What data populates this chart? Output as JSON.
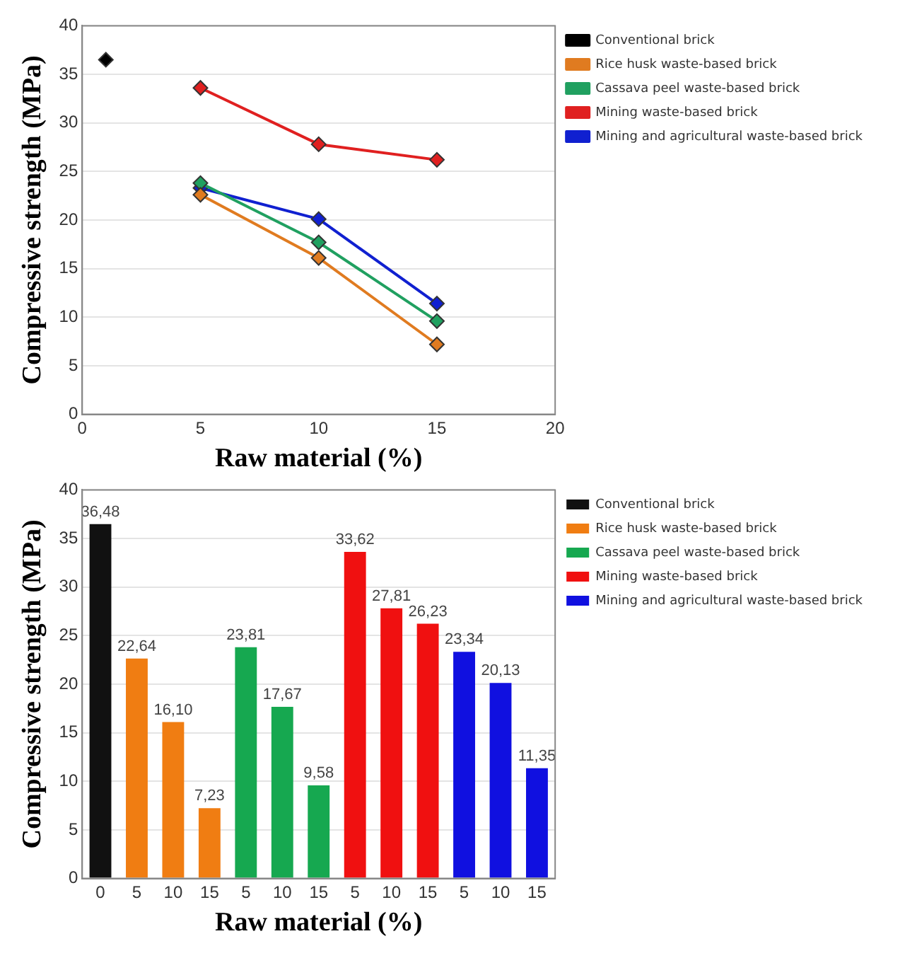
{
  "chart_data": [
    {
      "type": "line",
      "xlabel": "Raw material (%)",
      "ylabel": "Compressive strength (MPa)",
      "xlim": [
        0,
        20
      ],
      "xticks": [
        0,
        5,
        10,
        15,
        20
      ],
      "ylim": [
        0,
        40
      ],
      "yticks": [
        0,
        5,
        10,
        15,
        20,
        25,
        30,
        35,
        40
      ],
      "grid": "y",
      "legend": "top right",
      "marker": "diamond",
      "series": [
        {
          "name": "Conventional brick",
          "color": "#000000",
          "x": [
            1
          ],
          "values": [
            36.5
          ]
        },
        {
          "name": "Rice husk waste-based brick",
          "color": "#e07b20",
          "x": [
            5,
            10,
            15
          ],
          "values": [
            22.6,
            16.1,
            7.2
          ]
        },
        {
          "name": "Cassava peel waste-based brick",
          "color": "#20a060",
          "x": [
            5,
            10,
            15
          ],
          "values": [
            23.8,
            17.7,
            9.6
          ]
        },
        {
          "name": "Mining waste-based brick",
          "color": "#e02020",
          "x": [
            5,
            10,
            15
          ],
          "values": [
            33.6,
            27.8,
            26.2
          ]
        },
        {
          "name": "Mining and agricultural waste-based brick",
          "color": "#1020d0",
          "x": [
            5,
            10,
            15
          ],
          "values": [
            23.3,
            20.1,
            11.4
          ]
        }
      ]
    },
    {
      "type": "bar",
      "xlabel": "Raw material (%)",
      "ylabel": "Compressive strength (MPa)",
      "categories": [
        "0",
        "5",
        "10",
        "15",
        "5",
        "10",
        "15",
        "5",
        "10",
        "15",
        "5",
        "10",
        "15"
      ],
      "ylim": [
        0,
        40
      ],
      "yticks": [
        0,
        5,
        10,
        15,
        20,
        25,
        30,
        35,
        40
      ],
      "grid": "y",
      "legend": "top right",
      "series": [
        {
          "name": "Conventional brick",
          "color": "#111111",
          "values": [
            36.48,
            null,
            null,
            null,
            null,
            null,
            null,
            null,
            null,
            null,
            null,
            null,
            null
          ],
          "value_labels": [
            "36,48",
            null,
            null,
            null,
            null,
            null,
            null,
            null,
            null,
            null,
            null,
            null,
            null
          ]
        },
        {
          "name": "Rice husk waste-based brick",
          "color": "#f07d12",
          "values": [
            null,
            22.64,
            16.1,
            7.23,
            null,
            null,
            null,
            null,
            null,
            null,
            null,
            null,
            null
          ],
          "value_labels": [
            null,
            "22,64",
            "16,10",
            "7,23",
            null,
            null,
            null,
            null,
            null,
            null,
            null,
            null,
            null
          ]
        },
        {
          "name": "Cassava peel waste-based brick",
          "color": "#16a850",
          "values": [
            null,
            null,
            null,
            null,
            23.81,
            17.67,
            9.58,
            null,
            null,
            null,
            null,
            null,
            null
          ],
          "value_labels": [
            null,
            null,
            null,
            null,
            "23,81",
            "17,67",
            "9,58",
            null,
            null,
            null,
            null,
            null,
            null
          ]
        },
        {
          "name": "Mining waste-based brick",
          "color": "#f01010",
          "values": [
            null,
            null,
            null,
            null,
            null,
            null,
            null,
            33.62,
            27.81,
            26.23,
            null,
            null,
            null
          ],
          "value_labels": [
            null,
            null,
            null,
            null,
            null,
            null,
            null,
            "33,62",
            "27,81",
            "26,23",
            null,
            null,
            null
          ]
        },
        {
          "name": "Mining and agricultural waste-based brick",
          "color": "#1010e0",
          "values": [
            null,
            null,
            null,
            null,
            null,
            null,
            null,
            null,
            null,
            null,
            23.34,
            20.13,
            11.35
          ],
          "value_labels": [
            null,
            null,
            null,
            null,
            null,
            null,
            null,
            null,
            null,
            null,
            "23,34",
            "20,13",
            "11,35"
          ]
        }
      ]
    }
  ]
}
